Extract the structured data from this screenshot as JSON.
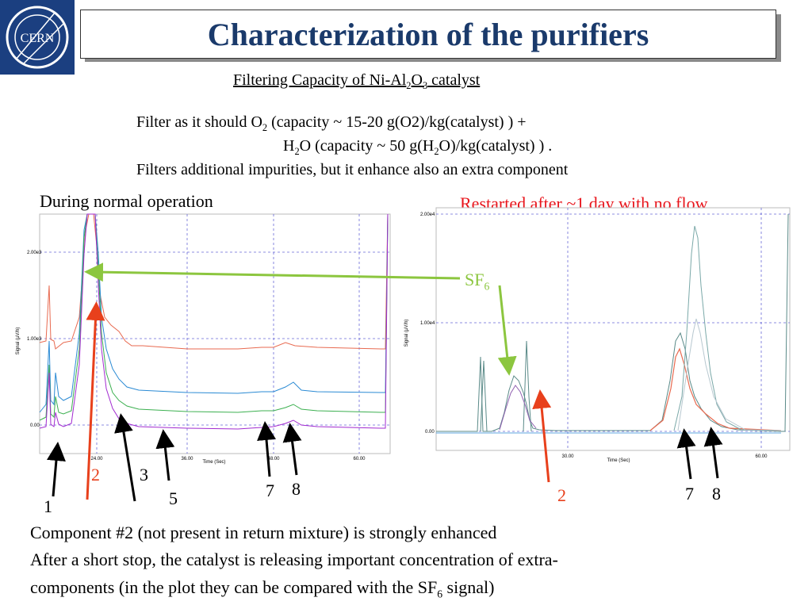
{
  "logo": {
    "text": "CERN"
  },
  "title": "Characterization of the purifiers",
  "subtitle": {
    "prefix": "Filtering Capacity of Ni-Al",
    "sub1": "2",
    "mid": "O",
    "sub2": "3",
    "suffix": " catalyst"
  },
  "filter_lines": {
    "l1_prefix": "Filter as it should O",
    "l1_sub": "2",
    "l1_suffix": " (capacity ~ 15-20 g(O2)/kg(catalyst) ) +",
    "l2_a": "H",
    "l2_sub": "2",
    "l2_b": "O (capacity ~ 50 g(H",
    "l2_sub2": "2",
    "l2_c": "O)/kg(catalyst) ) .",
    "l3": "Filters additional impurities, but it enhance also an extra component"
  },
  "left_plot": {
    "heading": "During normal operation",
    "ylabel": "Signal (µV/h)",
    "xlabel": "Time (Sec)",
    "yticks": [
      "2.00e3",
      "1.00e3",
      "0.00"
    ],
    "xticks": [
      "24.00",
      "36.00",
      "48.00",
      "60.00"
    ]
  },
  "right_plot": {
    "heading": "Restarted after ~1 day with no flow",
    "ylabel": "Signal (µV/h)",
    "xlabel": "Time (Sec)",
    "yticks": [
      "2.00e4",
      "1.00e4",
      "0.00"
    ],
    "xticks": [
      "30.00",
      "60.00"
    ]
  },
  "sf6_label": {
    "text": "SF",
    "sub": "6"
  },
  "peak_labels": {
    "left": [
      "1",
      "2",
      "3",
      "5",
      "7",
      "8"
    ],
    "right": [
      "2",
      "7",
      "8"
    ]
  },
  "bottom_text": {
    "line1": "Component #2 (not present in return mixture) is strongly enhanced",
    "line2": "After a short stop, the catalyst is releasing important concentration of extra-",
    "line3_prefix": "components (in the plot they can be compared with the SF",
    "line3_sub": "6",
    "line3_suffix": " signal)"
  },
  "colors": {
    "title": "#1a3a6b",
    "logo_bg": "#1b3f80",
    "red_heading": "#e8141b",
    "arrow_red": "#e8401c",
    "arrow_green": "#8cc63f",
    "trace_red": "#e86a50",
    "trace_blue": "#2a8ad4",
    "trace_green": "#3cb050",
    "trace_purple": "#a22bd0"
  }
}
